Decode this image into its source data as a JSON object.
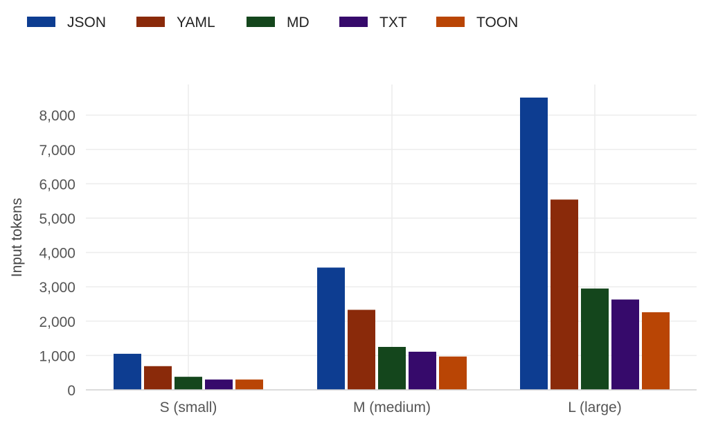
{
  "chart_data": {
    "type": "bar",
    "title": "",
    "xlabel": "",
    "ylabel": "Input tokens",
    "categories": [
      "S (small)",
      "M (medium)",
      "L (large)"
    ],
    "series": [
      {
        "name": "JSON",
        "color": "#0d3d91",
        "values": [
          1050,
          3560,
          8510
        ]
      },
      {
        "name": "YAML",
        "color": "#8a2a0a",
        "values": [
          690,
          2330,
          5540
        ]
      },
      {
        "name": "MD",
        "color": "#14461c",
        "values": [
          380,
          1250,
          2950
        ]
      },
      {
        "name": "TXT",
        "color": "#360a6b",
        "values": [
          300,
          1110,
          2630
        ]
      },
      {
        "name": "TOON",
        "color": "#b94505",
        "values": [
          300,
          970,
          2260
        ]
      }
    ],
    "ylim": [
      0,
      9000
    ],
    "yticks": [
      0,
      1000,
      2000,
      3000,
      4000,
      5000,
      6000,
      7000,
      8000
    ],
    "ytick_labels": [
      "0",
      "1,000",
      "2,000",
      "3,000",
      "4,000",
      "5,000",
      "6,000",
      "7,000",
      "8,000"
    ],
    "grid": true,
    "legend_position": "top-left"
  }
}
